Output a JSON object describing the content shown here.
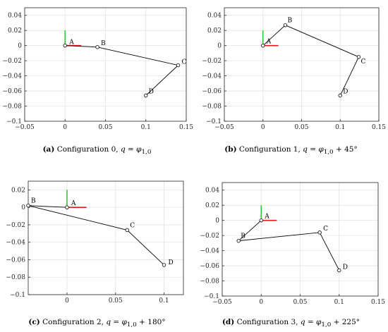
{
  "chart_data": [
    {
      "type": "line",
      "caption_tag": "(a)",
      "caption_text": "Configuration 0,",
      "caption_math": "q = φ",
      "caption_sub": "1,0",
      "caption_suffix": "",
      "xlim": [
        -0.05,
        0.15
      ],
      "ylim": [
        -0.1,
        0.05
      ],
      "xticks": [
        -0.05,
        0,
        0.05,
        0.1,
        0.15
      ],
      "xtick_labels": [
        "−0.05",
        "0",
        "0.05",
        "0.1",
        "0.15"
      ],
      "yticks": [
        -0.1,
        -0.08,
        -0.06,
        -0.04,
        -0.02,
        0,
        0.02,
        0.04
      ],
      "ytick_labels": [
        "−0.1",
        "−0.08",
        "−0.06",
        "−0.04",
        "−0.02",
        "0",
        "0.02",
        "0.04"
      ],
      "grid": true,
      "frame_axes": {
        "x_length": 0.02,
        "y_length": 0.02,
        "x_color": "#e01b1b",
        "y_color": "#2ecc2e"
      },
      "link_color": "#000000",
      "points": [
        {
          "label": "A",
          "x": 0.0,
          "y": 0.0,
          "label_offset": [
            6,
            -2
          ]
        },
        {
          "label": "B",
          "x": 0.04,
          "y": -0.002,
          "label_offset": [
            5,
            -3
          ]
        },
        {
          "label": "C",
          "x": 0.14,
          "y": -0.026,
          "label_offset": [
            5,
            -2
          ]
        },
        {
          "label": "D",
          "x": 0.1,
          "y": -0.066,
          "label_offset": [
            4,
            -3
          ]
        }
      ]
    },
    {
      "type": "line",
      "caption_tag": "(b)",
      "caption_text": "Configuration 1,",
      "caption_math": "q = φ",
      "caption_sub": "1,0",
      "caption_suffix": " + 45°",
      "xlim": [
        -0.05,
        0.15
      ],
      "ylim": [
        -0.1,
        0.05
      ],
      "xticks": [
        -0.05,
        0,
        0.05,
        0.1,
        0.15
      ],
      "xtick_labels": [
        "−0.05",
        "0",
        "0.05",
        "0.1",
        "0.15"
      ],
      "yticks": [
        -0.1,
        -0.08,
        -0.06,
        -0.04,
        -0.02,
        0,
        0.02,
        0.04
      ],
      "ytick_labels": [
        "−0.1",
        "−0.08",
        "−0.06",
        "−0.04",
        "−0.02",
        "0",
        "0.02",
        "0.04"
      ],
      "grid": true,
      "frame_axes": {
        "x_length": 0.02,
        "y_length": 0.02,
        "x_color": "#e01b1b",
        "y_color": "#2ecc2e"
      },
      "link_color": "#000000",
      "points": [
        {
          "label": "A",
          "x": 0.0,
          "y": 0.0,
          "label_offset": [
            5,
            -3
          ]
        },
        {
          "label": "B",
          "x": 0.029,
          "y": 0.027,
          "label_offset": [
            3,
            -4
          ]
        },
        {
          "label": "C",
          "x": 0.124,
          "y": -0.015,
          "label_offset": [
            3,
            9
          ]
        },
        {
          "label": "D",
          "x": 0.1,
          "y": -0.066,
          "label_offset": [
            4,
            -3
          ]
        }
      ]
    },
    {
      "type": "line",
      "caption_tag": "(c)",
      "caption_text": "Configuration 2,",
      "caption_math": "q = φ",
      "caption_sub": "1,0",
      "caption_suffix": " + 180°",
      "xlim": [
        -0.04,
        0.12
      ],
      "ylim": [
        -0.1,
        0.03
      ],
      "xticks": [
        0,
        0.05,
        0.1
      ],
      "xtick_labels": [
        "0",
        "0.05",
        "0.1"
      ],
      "yticks": [
        -0.1,
        -0.08,
        -0.06,
        -0.04,
        -0.02,
        0,
        0.02
      ],
      "ytick_labels": [
        "−0.1",
        "−0.08",
        "−0.06",
        "−0.04",
        "−0.02",
        "0",
        "0.02"
      ],
      "grid": true,
      "frame_axes": {
        "x_length": 0.02,
        "y_length": 0.02,
        "x_color": "#e01b1b",
        "y_color": "#2ecc2e"
      },
      "link_color": "#000000",
      "points": [
        {
          "label": "A",
          "x": 0.0,
          "y": 0.0,
          "label_offset": [
            6,
            -3
          ]
        },
        {
          "label": "B",
          "x": -0.04,
          "y": 0.002,
          "label_offset": [
            4,
            -4
          ]
        },
        {
          "label": "C",
          "x": 0.062,
          "y": -0.026,
          "label_offset": [
            4,
            -4
          ]
        },
        {
          "label": "D",
          "x": 0.1,
          "y": -0.066,
          "label_offset": [
            6,
            -1
          ]
        }
      ]
    },
    {
      "type": "line",
      "caption_tag": "(d)",
      "caption_text": "Configuration 3,",
      "caption_math": "q = φ",
      "caption_sub": "1,0",
      "caption_suffix": " + 225°",
      "xlim": [
        -0.05,
        0.15
      ],
      "ylim": [
        -0.1,
        0.05
      ],
      "xticks": [
        -0.05,
        0,
        0.05,
        0.1,
        0.15
      ],
      "xtick_labels": [
        "−0.05",
        "0",
        "0.05",
        "0.1",
        "0.15"
      ],
      "yticks": [
        -0.1,
        -0.08,
        -0.06,
        -0.04,
        -0.02,
        0,
        0.02,
        0.04
      ],
      "ytick_labels": [
        "−0.1",
        "−0.08",
        "−0.06",
        "−0.04",
        "−0.02",
        "0",
        "0.02",
        "0.04"
      ],
      "grid": true,
      "frame_axes": {
        "x_length": 0.02,
        "y_length": 0.02,
        "x_color": "#e01b1b",
        "y_color": "#2ecc2e"
      },
      "link_color": "#000000",
      "points": [
        {
          "label": "A",
          "x": 0.0,
          "y": 0.0,
          "label_offset": [
            5,
            -3
          ]
        },
        {
          "label": "B",
          "x": -0.029,
          "y": -0.027,
          "label_offset": [
            3,
            -4
          ]
        },
        {
          "label": "C",
          "x": 0.075,
          "y": -0.016,
          "label_offset": [
            5,
            -3
          ]
        },
        {
          "label": "D",
          "x": 0.1,
          "y": -0.066,
          "label_offset": [
            5,
            -2
          ]
        }
      ]
    }
  ]
}
